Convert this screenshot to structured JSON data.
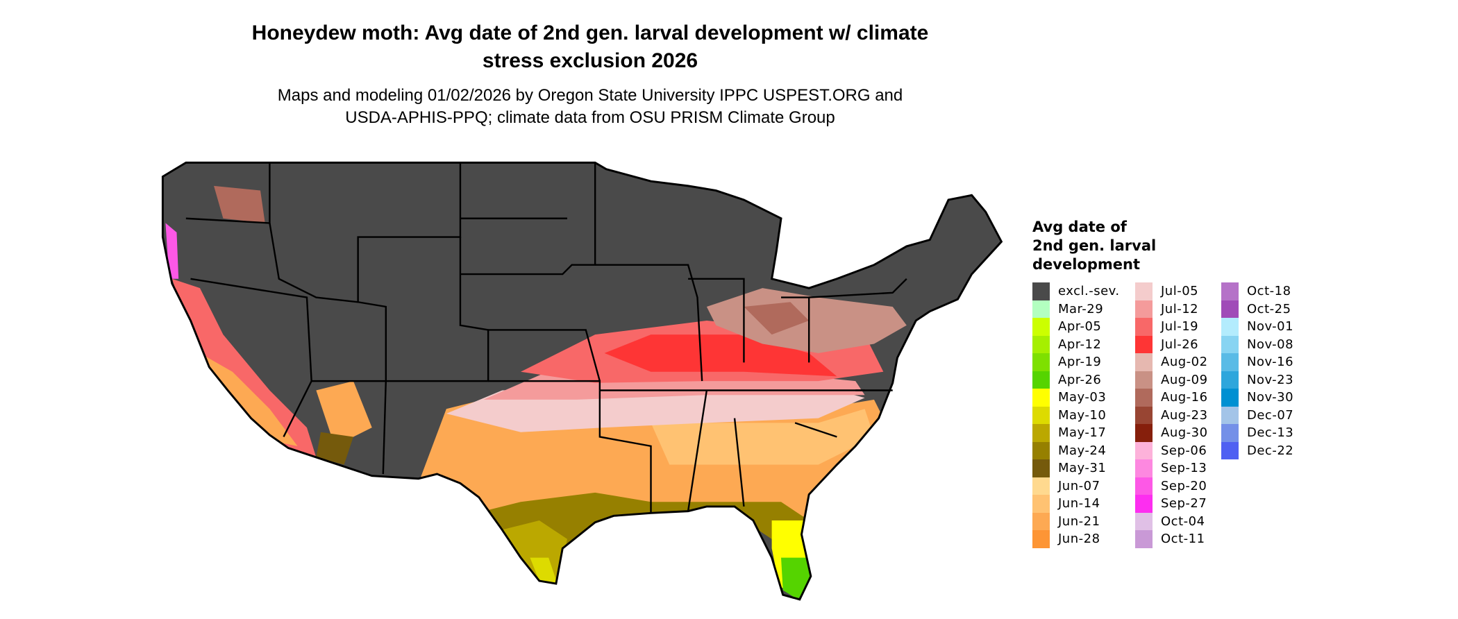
{
  "title": {
    "line1": "Honeydew moth: Avg date of 2nd gen. larval development w/ climate",
    "line2": "stress exclusion 2026"
  },
  "subtitle": {
    "line1": "Maps and modeling 01/02/2026 by Oregon State University IPPC USPEST.ORG and",
    "line2": "USDA-APHIS-PPQ; climate data from OSU PRISM Climate Group"
  },
  "legend": {
    "title_lines": [
      "Avg date of",
      "2nd gen. larval",
      "development"
    ],
    "columns": [
      [
        {
          "label": "excl.-sev.",
          "color": "#4a4a4a"
        },
        {
          "label": "Mar-29",
          "color": "#b3ffc0"
        },
        {
          "label": "Apr-05",
          "color": "#ccff00"
        },
        {
          "label": "Apr-12",
          "color": "#a6ef00"
        },
        {
          "label": "Apr-19",
          "color": "#7ee000"
        },
        {
          "label": "Apr-26",
          "color": "#55d400"
        },
        {
          "label": "May-03",
          "color": "#ffff00"
        },
        {
          "label": "May-10",
          "color": "#dddb00"
        },
        {
          "label": "May-17",
          "color": "#bba800"
        },
        {
          "label": "May-24",
          "color": "#968000"
        },
        {
          "label": "May-31",
          "color": "#755a0c"
        },
        {
          "label": "Jun-07",
          "color": "#ffd98f"
        },
        {
          "label": "Jun-14",
          "color": "#ffc272"
        },
        {
          "label": "Jun-21",
          "color": "#fda953"
        },
        {
          "label": "Jun-28",
          "color": "#fd9535"
        }
      ],
      [
        {
          "label": "Jul-05",
          "color": "#f4cccc"
        },
        {
          "label": "Jul-12",
          "color": "#f49b9b"
        },
        {
          "label": "Jul-19",
          "color": "#f86868"
        },
        {
          "label": "Jul-26",
          "color": "#fe3535"
        },
        {
          "label": "Aug-02",
          "color": "#e6b8b0"
        },
        {
          "label": "Aug-09",
          "color": "#c99185"
        },
        {
          "label": "Aug-16",
          "color": "#b06a5c"
        },
        {
          "label": "Aug-23",
          "color": "#984533"
        },
        {
          "label": "Aug-30",
          "color": "#861f0c"
        },
        {
          "label": "Sep-06",
          "color": "#fdb2da"
        },
        {
          "label": "Sep-13",
          "color": "#fd88e0"
        },
        {
          "label": "Sep-20",
          "color": "#fd58e6"
        },
        {
          "label": "Sep-27",
          "color": "#fd2ef0"
        },
        {
          "label": "Oct-04",
          "color": "#e0c0e6"
        },
        {
          "label": "Oct-11",
          "color": "#c999d6"
        }
      ],
      [
        {
          "label": "Oct-18",
          "color": "#b572c8"
        },
        {
          "label": "Oct-25",
          "color": "#a04bb8"
        },
        {
          "label": "Nov-01",
          "color": "#b3ecfd"
        },
        {
          "label": "Nov-08",
          "color": "#88d4f2"
        },
        {
          "label": "Nov-16",
          "color": "#5abbe6"
        },
        {
          "label": "Nov-23",
          "color": "#2ea6dc"
        },
        {
          "label": "Nov-30",
          "color": "#0090d2"
        },
        {
          "label": "Dec-07",
          "color": "#a3c4e8"
        },
        {
          "label": "Dec-13",
          "color": "#7490e8"
        },
        {
          "label": "Dec-22",
          "color": "#4f60f2"
        }
      ]
    ]
  }
}
